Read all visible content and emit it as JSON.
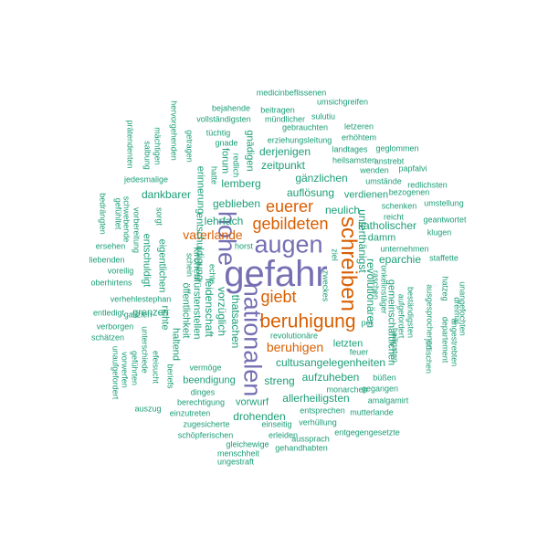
{
  "palette": {
    "tier1": "#1b9e77",
    "tier2": "#d95f02",
    "tier3": "#7570b3"
  },
  "words": {
    "gefahr": "gefahr",
    "augen": "augen",
    "hohe": "hohe",
    "nationalen": "nationalen",
    "schreiben": "schreiben",
    "beruhigung": "beruhigung",
    "gebildeten": "gebildeten",
    "euerer": "euerer",
    "giebt": "giebt",
    "vaterlande": "vaterlande",
    "beruhigen": "beruhigen",
    "medicinbeflissenen": "medicinbeflissenen",
    "umsichgreifen": "umsichgreifen",
    "bejahende": "bejahende",
    "beitragen": "beitragen",
    "vollstaendigsten": "vollständigsten",
    "muendlicher": "mündlicher",
    "sulutiu": "sulutiu",
    "gebrauchten": "gebrauchten",
    "letzeren": "letzeren",
    "tuechtig": "tüchtig",
    "gnade": "gnade",
    "gnaedigen": "gnädigen",
    "erziehungsleitung": "erziehungsleitung",
    "erhoehtem": "erhöhtem",
    "praetendenten": "prätendenten",
    "salbung": "salbung",
    "maechtigen": "mächtigen",
    "hervorgehenden": "hervorgehenden",
    "getragen": "getragen",
    "forum": "forum",
    "hatte": "hatte",
    "redlich": "redlich",
    "derjenigen": "derjenigen",
    "landtages": "landtages",
    "geglommen": "geglommen",
    "heilsamsten": "heilsamsten",
    "anstrebt": "anstrebt",
    "zeitpunkt": "zeitpunkt",
    "wenden": "wenden",
    "papfalvi": "papfalvi",
    "jedesmalige": "jedesmalige",
    "gaenzlichen": "gänzlichen",
    "umstaende": "umstände",
    "redlichsten": "redlichsten",
    "bezogenen": "bezogenen",
    "dankbarer": "dankbarer",
    "lemberg": "lemberg",
    "aufloesung": "auflösung",
    "verdienen": "verdienen",
    "umstellung": "umstellung",
    "bedraengten": "bedrängten",
    "gefuehltet": "gefühltet",
    "schwebende": "schwebende",
    "vorbereitung": "vorbereitung",
    "sorgt": "sorgt",
    "erinnerung": "erinnerung",
    "geblieben": "geblieben",
    "neulich": "neulich",
    "schenken": "schenken",
    "geantwortet": "geantwortet",
    "reicht": "reicht",
    "lehrfach": "lehrfach",
    "katholischer": "katholischer",
    "klugen": "klugen",
    "ersehen": "ersehen",
    "entschuldigt": "entschuldigt",
    "entschuldigung": "entschuldigung",
    "horst": "horst",
    "unterthaenigst": "unterthänigst",
    "damm": "damm",
    "unternehmen": "unternehmen",
    "liebenden": "liebenden",
    "eigentlichen": "eigentlichen",
    "schein": "schein",
    "kirchenfuerstenstellen": "kirchenfürstenstellen",
    "echte": "echte",
    "ziel": "ziel",
    "eparchie": "eparchie",
    "staffette": "staffette",
    "voreilig": "voreilig",
    "oberhirtens": "oberhirtens",
    "leidenschaft": "leidenschaft",
    "zweckes": "zweckes",
    "revolutionaeren": "revolutionären",
    "raschen": "raschen",
    "onkelinstaeger": "onkelinstäger",
    "hatzeg": "hatzeg",
    "verhehlestephan": "verhehlestephan",
    "galizien": "galizien",
    "vorzueglich": "vorzüglich",
    "gemeinschaftlichen": "gemeinschaftlichen",
    "aufgefordert": "aufgefordert",
    "bestaendigsten": "beständigsten",
    "ausgesprochenen": "ausgesprochenen",
    "dreimal": "dreimal",
    "unangefochten": "unangefochten",
    "entledigt": "entledigt",
    "grenzen": "grenzen",
    "richte": "richte",
    "oeffentlichkeit": "öffentlichkeit",
    "thatsachen": "thatsachen",
    "per": "per",
    "departement": "departement",
    "angestrebten": "angestrebten",
    "verborgen": "verborgen",
    "haltend": "haltend",
    "revolutionaere": "revolutionäre",
    "heiligsten": "heiligsten",
    "schaetzen": "schätzen",
    "letzten": "letzten",
    "juedischen": "jüdischen",
    "unaufgefordert": "unaufgefordert",
    "vorwerfen": "vorwerfen",
    "gefuehrten": "geführten",
    "unterschiede": "unterschiede",
    "efeisucht": "efeisucht",
    "vermoege": "vermöge",
    "feuer": "feuer",
    "cultusangelegenheiten": "cultusangelegenheiten",
    "beendigung": "beendigung",
    "streng": "streng",
    "aufzuheben": "aufzuheben",
    "buessen": "büßen",
    "beriefs": "beriefs",
    "dinges": "dinges",
    "monarchen": "monarchen",
    "gegangen": "gegangen",
    "allerheiligsten": "allerheiligsten",
    "auszug": "auszug",
    "berechtigung": "berechtigung",
    "vorwurf": "vorwurf",
    "amalgamirt": "amalgamirt",
    "einzutreten": "einzutreten",
    "drohenden": "drohenden",
    "entsprechen": "entsprechen",
    "mutterlande": "mutterlande",
    "zugesicherte": "zugesicherte",
    "einseitig": "einseitig",
    "verhuellung": "verhüllung",
    "schoepferischen": "schöpferischen",
    "erleiden": "erleiden",
    "entgegengesetzte": "entgegengesetzte",
    "gleichewige": "gleichewige",
    "aussprach": "aussprach",
    "gehandhabten": "gehandhabten",
    "menschheit": "menschheit",
    "ungestraft": "ungestraft"
  }
}
